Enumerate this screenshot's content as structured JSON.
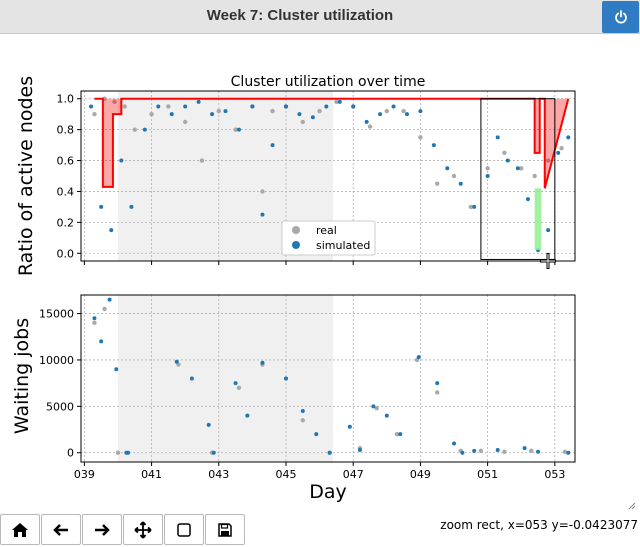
{
  "window": {
    "title": "Week 7: Cluster utilization",
    "power_icon": "power-icon"
  },
  "toolbar": {
    "buttons": [
      {
        "name": "home-button",
        "icon": "home-icon"
      },
      {
        "name": "back-button",
        "icon": "arrow-left-icon"
      },
      {
        "name": "forward-button",
        "icon": "arrow-right-icon"
      },
      {
        "name": "pan-button",
        "icon": "move-icon"
      },
      {
        "name": "zoom-button",
        "icon": "rectangle-icon"
      },
      {
        "name": "save-button",
        "icon": "save-icon"
      }
    ]
  },
  "status": {
    "text": "zoom rect, x=053 y=-0.0423077"
  },
  "colors": {
    "real": "#a9a9a9",
    "simulated": "#1f77b4",
    "red": "#ff0000",
    "green": "#90ee90",
    "shade": "#f0f0f0"
  },
  "chart_data": [
    {
      "type": "scatter",
      "title": "Cluster utilization over time",
      "ylabel": "Ratio of active nodes",
      "xlim": [
        38.9,
        53.6
      ],
      "ylim": [
        -0.05,
        1.05
      ],
      "yticks": [
        0.0,
        0.2,
        0.4,
        0.6,
        0.8,
        1.0
      ],
      "ytick_labels": [
        "0.0",
        "0.2",
        "0.4",
        "0.6",
        "0.8",
        "1.0"
      ],
      "grid": true,
      "legend": {
        "placement": "lower-center",
        "entries": [
          "real",
          "simulated"
        ]
      },
      "shaded_range": [
        40.0,
        46.4
      ],
      "zoom_rect": {
        "x": [
          50.8,
          53.0
        ],
        "y": [
          -0.04,
          1.0
        ]
      },
      "series": [
        {
          "name": "real",
          "x": [
            39.3,
            39.6,
            39.9,
            40.2,
            40.5,
            41.0,
            41.5,
            42.0,
            42.5,
            43.0,
            43.5,
            44.0,
            44.3,
            44.6,
            45.0,
            45.5,
            46.0,
            46.5,
            47.0,
            47.5,
            48.0,
            48.5,
            49.0,
            49.5,
            50.0,
            50.5,
            51.0,
            51.5,
            52.0,
            52.4,
            52.8,
            53.2
          ],
          "y": [
            0.9,
            1.0,
            0.98,
            0.95,
            0.8,
            0.9,
            0.95,
            0.85,
            0.6,
            0.92,
            0.8,
            0.95,
            0.4,
            0.92,
            0.95,
            0.85,
            0.92,
            0.98,
            0.95,
            0.82,
            0.92,
            0.92,
            0.75,
            0.45,
            0.5,
            0.3,
            0.55,
            0.65,
            0.55,
            0.5,
            0.6,
            0.68
          ]
        },
        {
          "name": "simulated",
          "x": [
            39.2,
            39.5,
            39.8,
            40.1,
            40.4,
            40.8,
            41.2,
            41.6,
            42.0,
            42.4,
            42.8,
            43.2,
            43.6,
            44.0,
            44.3,
            44.6,
            45.0,
            45.4,
            45.8,
            46.2,
            46.6,
            47.0,
            47.4,
            47.8,
            48.2,
            48.6,
            49.0,
            49.4,
            49.8,
            50.2,
            50.6,
            51.0,
            51.3,
            51.6,
            51.9,
            52.2,
            52.5,
            52.8,
            53.1,
            53.4
          ],
          "y": [
            0.95,
            0.3,
            0.15,
            0.6,
            0.3,
            0.8,
            0.95,
            0.9,
            0.95,
            0.98,
            0.9,
            0.92,
            0.8,
            0.95,
            0.25,
            0.7,
            0.95,
            0.9,
            0.88,
            0.95,
            0.98,
            0.95,
            0.85,
            0.9,
            0.95,
            0.9,
            0.92,
            0.7,
            0.55,
            0.45,
            0.3,
            0.5,
            0.75,
            0.6,
            0.55,
            0.35,
            0.02,
            0.15,
            0.65,
            0.75
          ]
        },
        {
          "name": "",
          "style": "red-line",
          "x": [
            39.3,
            39.55,
            39.55,
            39.85,
            39.85,
            40.1,
            40.1,
            52.4,
            52.4,
            52.55,
            52.55,
            52.7,
            52.7,
            53.4
          ],
          "y": [
            1.0,
            1.0,
            0.43,
            0.43,
            0.9,
            0.9,
            1.0,
            1.0,
            0.65,
            0.65,
            1.0,
            1.0,
            0.42,
            1.0
          ]
        },
        {
          "name": "",
          "style": "green-band",
          "x": [
            52.4,
            52.6
          ],
          "y": [
            0.02,
            0.42
          ]
        }
      ]
    },
    {
      "type": "scatter",
      "ylabel": "Waiting jobs",
      "xlabel": "Day",
      "xlim": [
        38.9,
        53.6
      ],
      "ylim": [
        -1000,
        17000
      ],
      "yticks": [
        0,
        5000,
        10000,
        15000
      ],
      "ytick_labels": [
        "0",
        "5000",
        "10000",
        "15000"
      ],
      "xticks": [
        39,
        41,
        43,
        45,
        47,
        49,
        51,
        53
      ],
      "xtick_labels": [
        "039",
        "041",
        "043",
        "045",
        "047",
        "049",
        "051",
        "053"
      ],
      "grid": true,
      "shaded_range": [
        40.0,
        46.4
      ],
      "series": [
        {
          "name": "real",
          "x": [
            39.3,
            39.6,
            40.0,
            41.8,
            42.8,
            43.6,
            44.3,
            45.5,
            46.3,
            47.2,
            47.7,
            48.3,
            48.9,
            49.5,
            50.2,
            50.8,
            51.5,
            52.3,
            53.3
          ],
          "y": [
            14000,
            15500,
            0,
            9500,
            0,
            7000,
            9500,
            3500,
            0,
            500,
            4800,
            2000,
            10000,
            6500,
            200,
            200,
            100,
            200,
            100
          ]
        },
        {
          "name": "simulated",
          "x": [
            39.3,
            39.5,
            39.75,
            39.95,
            40.25,
            40.3,
            41.75,
            42.2,
            42.7,
            42.85,
            43.5,
            43.85,
            44.3,
            45.0,
            45.5,
            45.9,
            46.3,
            46.9,
            47.2,
            47.6,
            48.0,
            48.4,
            48.95,
            49.5,
            50.0,
            50.25,
            50.6,
            51.3,
            52.1,
            52.5,
            53.4
          ],
          "y": [
            14500,
            12000,
            16500,
            9000,
            0,
            0,
            9800,
            8000,
            3000,
            0,
            7500,
            4000,
            9700,
            8000,
            4500,
            2000,
            0,
            2800,
            300,
            5000,
            4000,
            2000,
            10300,
            7500,
            1000,
            0,
            200,
            300,
            500,
            100,
            0
          ]
        }
      ]
    }
  ]
}
